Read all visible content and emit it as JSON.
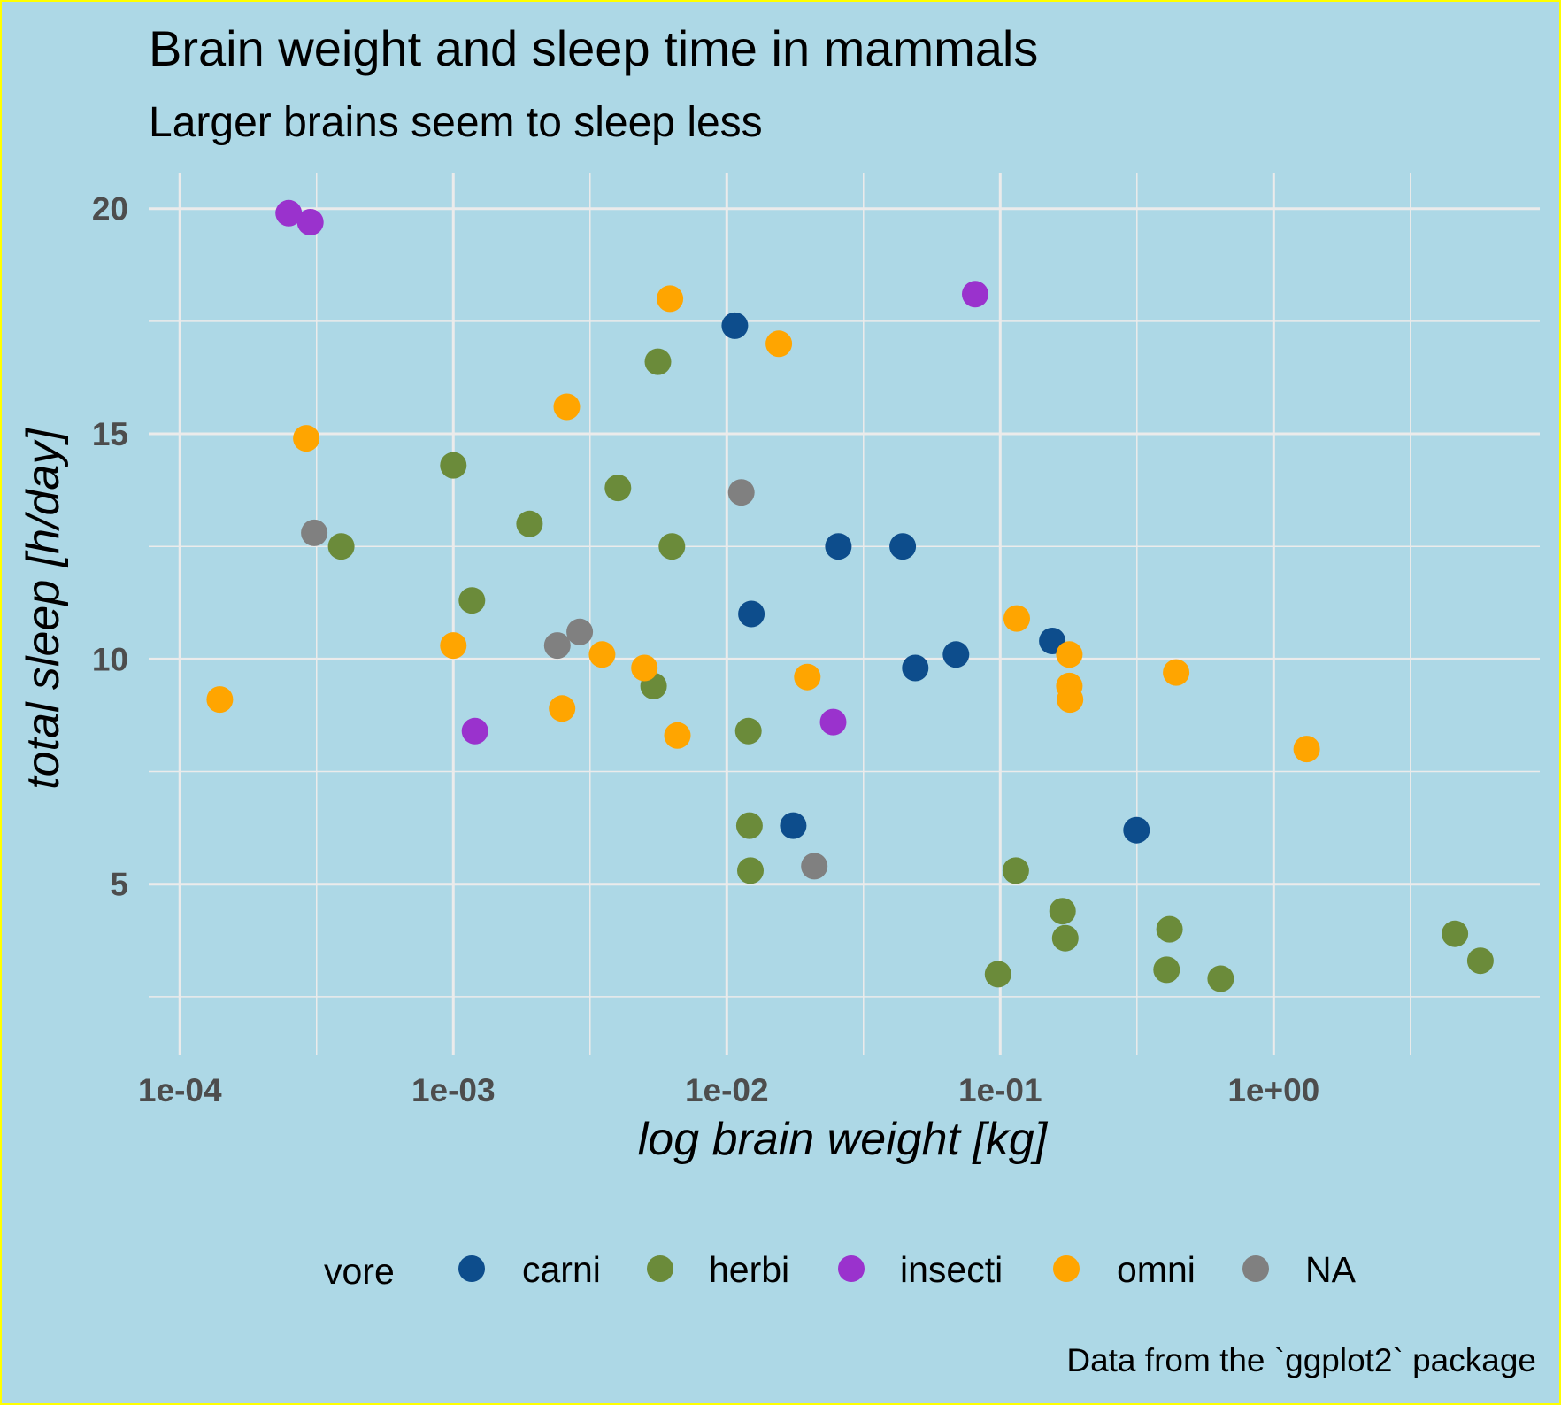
{
  "chart_data": {
    "type": "scatter",
    "title": "Brain weight and sleep time in mammals",
    "subtitle": "Larger brains seem to sleep less",
    "xlabel": "log brain weight [kg]",
    "ylabel": "total sleep [h/day]",
    "caption": "Data from the `ggplot2` package",
    "x_scale": "log10",
    "xlim": [
      7.69e-05,
      9.4
    ],
    "ylim": [
      1.2,
      20.8
    ],
    "x_ticks": [
      {
        "value": 0.0001,
        "label": "1e-04"
      },
      {
        "value": 0.001,
        "label": "1e-03"
      },
      {
        "value": 0.01,
        "label": "1e-02"
      },
      {
        "value": 0.1,
        "label": "1e-01"
      },
      {
        "value": 1,
        "label": "1e+00"
      }
    ],
    "y_ticks": [
      {
        "value": 5,
        "label": "5"
      },
      {
        "value": 10,
        "label": "10"
      },
      {
        "value": 15,
        "label": "15"
      },
      {
        "value": 20,
        "label": "20"
      }
    ],
    "grid": true,
    "legend_position": "bottom",
    "legend_title": "vore",
    "series": [
      {
        "name": "carni",
        "color": "#0d4d8c",
        "points": [
          {
            "x": 0.0107,
            "y": 17.4
          },
          {
            "x": 0.0123,
            "y": 11.0
          },
          {
            "x": 0.0175,
            "y": 6.3
          },
          {
            "x": 0.0256,
            "y": 12.5
          },
          {
            "x": 0.044,
            "y": 12.5
          },
          {
            "x": 0.0489,
            "y": 9.8
          },
          {
            "x": 0.0689,
            "y": 10.1
          },
          {
            "x": 0.155,
            "y": 10.4
          },
          {
            "x": 0.315,
            "y": 6.2
          }
        ]
      },
      {
        "name": "herbi",
        "color": "#6b8b3a",
        "points": [
          {
            "x": 0.000389,
            "y": 12.5
          },
          {
            "x": 0.001,
            "y": 14.3
          },
          {
            "x": 0.00117,
            "y": 11.3
          },
          {
            "x": 0.0019,
            "y": 13.0
          },
          {
            "x": 0.004,
            "y": 13.8
          },
          {
            "x": 0.0054,
            "y": 9.4
          },
          {
            "x": 0.0056,
            "y": 16.6
          },
          {
            "x": 0.0063,
            "y": 12.5
          },
          {
            "x": 0.012,
            "y": 8.4
          },
          {
            "x": 0.0121,
            "y": 6.3
          },
          {
            "x": 0.0122,
            "y": 5.3
          },
          {
            "x": 0.0982,
            "y": 3.0
          },
          {
            "x": 0.114,
            "y": 5.3
          },
          {
            "x": 0.169,
            "y": 4.4
          },
          {
            "x": 0.173,
            "y": 3.8
          },
          {
            "x": 0.406,
            "y": 3.1
          },
          {
            "x": 0.416,
            "y": 4.0
          },
          {
            "x": 0.64,
            "y": 2.9
          },
          {
            "x": 4.6,
            "y": 3.9
          },
          {
            "x": 5.7,
            "y": 3.3
          }
        ]
      },
      {
        "name": "insecti",
        "color": "#9a32cd",
        "points": [
          {
            "x": 0.00025,
            "y": 19.9
          },
          {
            "x": 0.0003,
            "y": 19.7
          },
          {
            "x": 0.0012,
            "y": 8.4
          },
          {
            "x": 0.0245,
            "y": 8.6
          },
          {
            "x": 0.081,
            "y": 18.1
          }
        ]
      },
      {
        "name": "omni",
        "color": "#ffa500",
        "points": [
          {
            "x": 0.00014,
            "y": 9.1
          },
          {
            "x": 0.00029,
            "y": 14.9
          },
          {
            "x": 0.001,
            "y": 10.3
          },
          {
            "x": 0.0025,
            "y": 8.9
          },
          {
            "x": 0.0026,
            "y": 15.6
          },
          {
            "x": 0.0035,
            "y": 10.1
          },
          {
            "x": 0.005,
            "y": 9.8
          },
          {
            "x": 0.0062,
            "y": 18.0
          },
          {
            "x": 0.0066,
            "y": 8.3
          },
          {
            "x": 0.0155,
            "y": 17.0
          },
          {
            "x": 0.0197,
            "y": 9.6
          },
          {
            "x": 0.115,
            "y": 10.9
          },
          {
            "x": 0.179,
            "y": 10.1
          },
          {
            "x": 0.179,
            "y": 9.4
          },
          {
            "x": 0.18,
            "y": 9.1
          },
          {
            "x": 0.44,
            "y": 9.7
          },
          {
            "x": 1.32,
            "y": 8.0
          }
        ]
      },
      {
        "name": "NA",
        "color": "#808080",
        "points": [
          {
            "x": 0.00031,
            "y": 12.8
          },
          {
            "x": 0.0024,
            "y": 10.3
          },
          {
            "x": 0.0029,
            "y": 10.6
          },
          {
            "x": 0.0113,
            "y": 13.7
          },
          {
            "x": 0.0209,
            "y": 5.4
          }
        ]
      }
    ]
  }
}
